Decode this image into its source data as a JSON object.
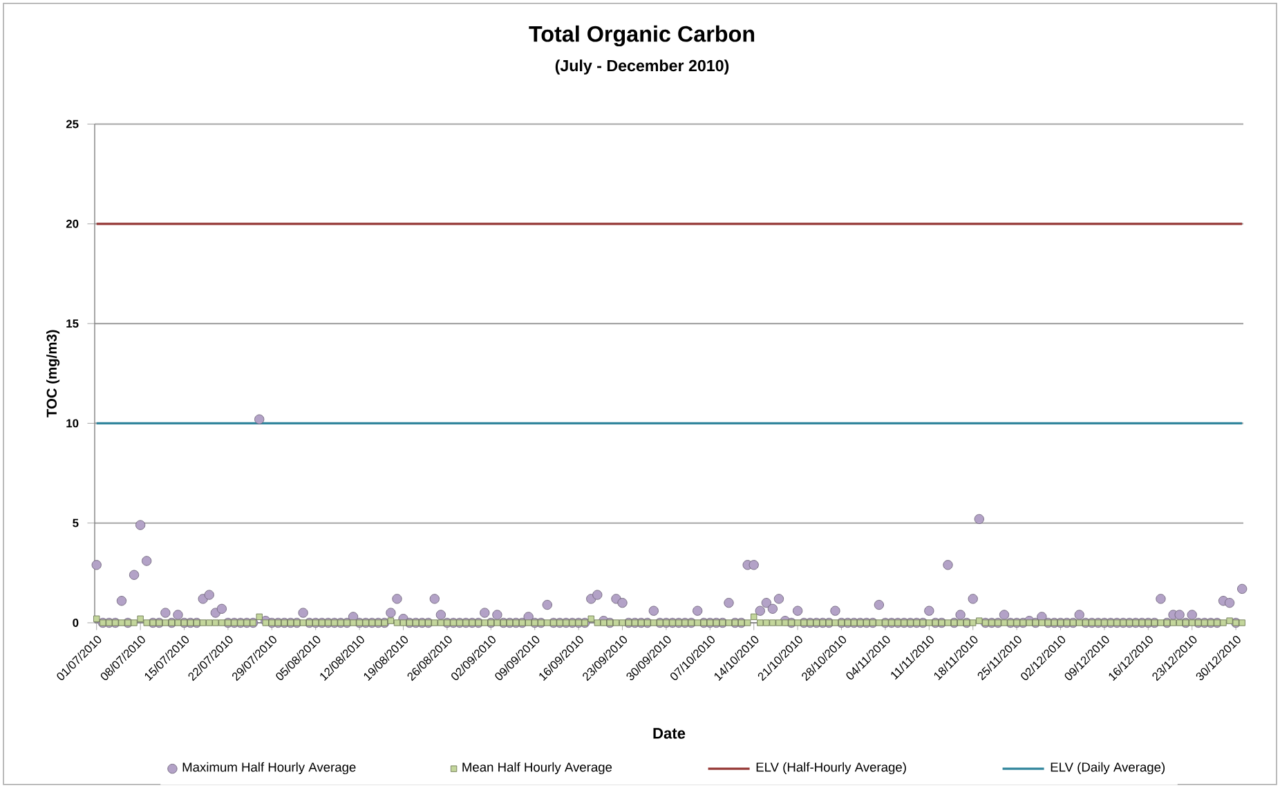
{
  "chart_data": {
    "type": "scatter",
    "title": "Total Organic Carbon",
    "subtitle": "(July - December 2010)",
    "xlabel": "Date",
    "ylabel": "TOC (mg/m3)",
    "x": [
      "2010-07-01",
      "2010-07-02",
      "2010-07-03",
      "2010-07-04",
      "2010-07-05",
      "2010-07-06",
      "2010-07-07",
      "2010-07-08",
      "2010-07-09",
      "2010-07-10",
      "2010-07-11",
      "2010-07-12",
      "2010-07-13",
      "2010-07-14",
      "2010-07-15",
      "2010-07-16",
      "2010-07-17",
      "2010-07-18",
      "2010-07-19",
      "2010-07-20",
      "2010-07-21",
      "2010-07-22",
      "2010-07-23",
      "2010-07-24",
      "2010-07-25",
      "2010-07-26",
      "2010-07-27",
      "2010-07-28",
      "2010-07-29",
      "2010-07-30",
      "2010-07-31",
      "2010-08-01",
      "2010-08-02",
      "2010-08-03",
      "2010-08-04",
      "2010-08-05",
      "2010-08-06",
      "2010-08-07",
      "2010-08-08",
      "2010-08-09",
      "2010-08-10",
      "2010-08-11",
      "2010-08-12",
      "2010-08-13",
      "2010-08-14",
      "2010-08-15",
      "2010-08-16",
      "2010-08-17",
      "2010-08-18",
      "2010-08-19",
      "2010-08-20",
      "2010-08-21",
      "2010-08-22",
      "2010-08-23",
      "2010-08-24",
      "2010-08-25",
      "2010-08-26",
      "2010-08-27",
      "2010-08-28",
      "2010-08-29",
      "2010-08-30",
      "2010-08-31",
      "2010-09-01",
      "2010-09-02",
      "2010-09-03",
      "2010-09-04",
      "2010-09-05",
      "2010-09-06",
      "2010-09-07",
      "2010-09-08",
      "2010-09-09",
      "2010-09-10",
      "2010-09-11",
      "2010-09-12",
      "2010-09-13",
      "2010-09-14",
      "2010-09-15",
      "2010-09-16",
      "2010-09-17",
      "2010-09-18",
      "2010-09-19",
      "2010-09-20",
      "2010-09-21",
      "2010-09-22",
      "2010-09-23",
      "2010-09-24",
      "2010-09-25",
      "2010-09-26",
      "2010-09-27",
      "2010-09-28",
      "2010-09-29",
      "2010-09-30",
      "2010-10-01",
      "2010-10-02",
      "2010-10-03",
      "2010-10-04",
      "2010-10-05",
      "2010-10-06",
      "2010-10-07",
      "2010-10-08",
      "2010-10-09",
      "2010-10-10",
      "2010-10-11",
      "2010-10-12",
      "2010-10-13",
      "2010-10-14",
      "2010-10-15",
      "2010-10-16",
      "2010-10-17",
      "2010-10-18",
      "2010-10-19",
      "2010-10-20",
      "2010-10-21",
      "2010-10-22",
      "2010-10-23",
      "2010-10-24",
      "2010-10-25",
      "2010-10-26",
      "2010-10-27",
      "2010-10-28",
      "2010-10-29",
      "2010-10-30",
      "2010-10-31",
      "2010-11-01",
      "2010-11-02",
      "2010-11-03",
      "2010-11-04",
      "2010-11-05",
      "2010-11-06",
      "2010-11-07",
      "2010-11-08",
      "2010-11-09",
      "2010-11-10",
      "2010-11-11",
      "2010-11-12",
      "2010-11-13",
      "2010-11-14",
      "2010-11-15",
      "2010-11-16",
      "2010-11-17",
      "2010-11-18",
      "2010-11-19",
      "2010-11-20",
      "2010-11-21",
      "2010-11-22",
      "2010-11-23",
      "2010-11-24",
      "2010-11-25",
      "2010-11-26",
      "2010-11-27",
      "2010-11-28",
      "2010-11-29",
      "2010-11-30",
      "2010-12-01",
      "2010-12-02",
      "2010-12-03",
      "2010-12-04",
      "2010-12-05",
      "2010-12-06",
      "2010-12-07",
      "2010-12-08",
      "2010-12-09",
      "2010-12-10",
      "2010-12-11",
      "2010-12-12",
      "2010-12-13",
      "2010-12-14",
      "2010-12-15",
      "2010-12-16",
      "2010-12-17",
      "2010-12-18",
      "2010-12-19",
      "2010-12-20",
      "2010-12-21",
      "2010-12-22",
      "2010-12-23",
      "2010-12-24",
      "2010-12-25",
      "2010-12-26",
      "2010-12-27",
      "2010-12-28",
      "2010-12-29",
      "2010-12-30",
      "2010-12-31"
    ],
    "series": [
      {
        "name": "Maximum Half Hourly Average",
        "marker": "circle",
        "color": "#b3a2c7",
        "values": [
          2.9,
          0,
          0,
          0,
          1.1,
          0,
          2.4,
          4.9,
          3.1,
          0,
          0,
          0.5,
          0,
          0.4,
          0,
          0,
          0,
          1.2,
          1.4,
          0.5,
          0.7,
          0,
          0,
          0,
          0,
          0,
          10.2,
          0.1,
          0,
          0,
          0,
          0,
          0,
          0.5,
          0,
          0,
          0,
          0,
          0,
          0,
          0,
          0.3,
          0,
          0,
          0,
          0,
          0,
          0.5,
          1.2,
          0.2,
          0,
          0,
          0,
          0,
          1.2,
          0.4,
          0,
          0,
          0,
          0,
          0,
          0,
          0.5,
          0,
          0.4,
          0,
          0,
          0,
          0,
          0.3,
          0,
          0,
          0.9,
          0,
          0,
          0,
          0,
          0,
          0,
          1.2,
          1.4,
          0.1,
          0,
          1.2,
          1.0,
          0,
          0,
          0,
          0,
          0.6,
          0,
          0,
          0,
          0,
          0,
          0,
          0.6,
          0,
          0,
          0,
          0,
          1.0,
          0,
          0,
          2.9,
          2.9,
          0.6,
          1.0,
          0.7,
          1.2,
          0.1,
          0,
          0.6,
          0,
          0,
          0,
          0,
          0,
          0.6,
          0,
          0,
          0,
          0,
          0,
          0,
          0.9,
          0,
          0,
          0,
          0,
          0,
          0,
          0,
          0.6,
          0,
          0,
          2.9,
          0,
          0.4,
          0,
          1.2,
          5.2,
          0,
          0,
          0,
          0.4,
          0,
          0,
          0,
          0.1,
          0,
          0.3,
          0,
          0,
          0,
          0,
          0,
          0.4,
          0,
          0,
          0,
          0,
          0,
          0,
          0,
          0,
          0,
          0,
          0,
          0,
          1.2,
          0,
          0.4,
          0.4,
          0,
          0.4,
          0,
          0,
          0,
          0,
          1.1,
          1.0,
          0,
          1.7
        ]
      },
      {
        "name": "Mean Half Hourly Average",
        "marker": "square",
        "color": "#c3d69b",
        "values": [
          0.2,
          0,
          0,
          0,
          0,
          0,
          0,
          0.2,
          0,
          0,
          0,
          0,
          0,
          0,
          0,
          0,
          0,
          0,
          0,
          0,
          0,
          0,
          0,
          0,
          0,
          0,
          0.3,
          0,
          0,
          0,
          0,
          0,
          0,
          0,
          0,
          0,
          0,
          0,
          0,
          0,
          0,
          0,
          0,
          0,
          0,
          0,
          0,
          0.1,
          0,
          0,
          0,
          0,
          0,
          0,
          0,
          0,
          0,
          0,
          0,
          0,
          0,
          0,
          0,
          0,
          0,
          0,
          0,
          0,
          0,
          0,
          0,
          0,
          0,
          0,
          0,
          0,
          0,
          0,
          0,
          0.2,
          0,
          0,
          0,
          0,
          0,
          0,
          0,
          0,
          0,
          0,
          0,
          0,
          0,
          0,
          0,
          0,
          0,
          0,
          0,
          0,
          0,
          0,
          0,
          0,
          0,
          0.3,
          0,
          0,
          0,
          0,
          0,
          0,
          0,
          0,
          0,
          0,
          0,
          0,
          0,
          0,
          0,
          0,
          0,
          0,
          0,
          0,
          0,
          0,
          0,
          0,
          0,
          0,
          0,
          0,
          0,
          0,
          0,
          0,
          0,
          0,
          0,
          0.1,
          0,
          0,
          0,
          0,
          0,
          0,
          0,
          0,
          0,
          0,
          0,
          0,
          0,
          0,
          0,
          0,
          0,
          0,
          0,
          0,
          0,
          0,
          0,
          0,
          0,
          0,
          0,
          0,
          0,
          0,
          0,
          0,
          0,
          0,
          0,
          0,
          0,
          0,
          0,
          0.1,
          0,
          0
        ]
      },
      {
        "name": "ELV (Half-Hourly Average)",
        "type": "line",
        "marker": "none",
        "color": "#953735",
        "x": [
          "2010-07-01",
          "2010-12-31"
        ],
        "values": [
          20,
          20
        ]
      },
      {
        "name": "ELV (Daily Average)",
        "type": "line",
        "marker": "none",
        "color": "#31859c",
        "x": [
          "2010-07-01",
          "2010-12-31"
        ],
        "values": [
          10,
          10
        ]
      }
    ],
    "xlim": [
      "2010-07-01",
      "2010-12-31"
    ],
    "xticks": [
      {
        "value": "2010-07-01",
        "label": "01/07/2010"
      },
      {
        "value": "2010-07-08",
        "label": "08/07/2010"
      },
      {
        "value": "2010-07-15",
        "label": "15/07/2010"
      },
      {
        "value": "2010-07-22",
        "label": "22/07/2010"
      },
      {
        "value": "2010-07-29",
        "label": "29/07/2010"
      },
      {
        "value": "2010-08-05",
        "label": "05/08/2010"
      },
      {
        "value": "2010-08-12",
        "label": "12/08/2010"
      },
      {
        "value": "2010-08-19",
        "label": "19/08/2010"
      },
      {
        "value": "2010-08-26",
        "label": "26/08/2010"
      },
      {
        "value": "2010-09-02",
        "label": "02/09/2010"
      },
      {
        "value": "2010-09-09",
        "label": "09/09/2010"
      },
      {
        "value": "2010-09-16",
        "label": "16/09/2010"
      },
      {
        "value": "2010-09-23",
        "label": "23/09/2010"
      },
      {
        "value": "2010-09-30",
        "label": "30/09/2010"
      },
      {
        "value": "2010-10-07",
        "label": "07/10/2010"
      },
      {
        "value": "2010-10-14",
        "label": "14/10/2010"
      },
      {
        "value": "2010-10-21",
        "label": "21/10/2010"
      },
      {
        "value": "2010-10-28",
        "label": "28/10/2010"
      },
      {
        "value": "2010-11-04",
        "label": "04/11/2010"
      },
      {
        "value": "2010-11-11",
        "label": "11/11/2010"
      },
      {
        "value": "2010-11-18",
        "label": "18/11/2010"
      },
      {
        "value": "2010-11-25",
        "label": "25/11/2010"
      },
      {
        "value": "2010-12-02",
        "label": "02/12/2010"
      },
      {
        "value": "2010-12-09",
        "label": "09/12/2010"
      },
      {
        "value": "2010-12-16",
        "label": "16/12/2010"
      },
      {
        "value": "2010-12-23",
        "label": "23/12/2010"
      },
      {
        "value": "2010-12-30",
        "label": "30/12/2010"
      }
    ],
    "ylim": [
      0,
      25
    ],
    "yticks": [
      0,
      5,
      10,
      15,
      20,
      25
    ],
    "grid": "y",
    "legend": "bottom"
  }
}
